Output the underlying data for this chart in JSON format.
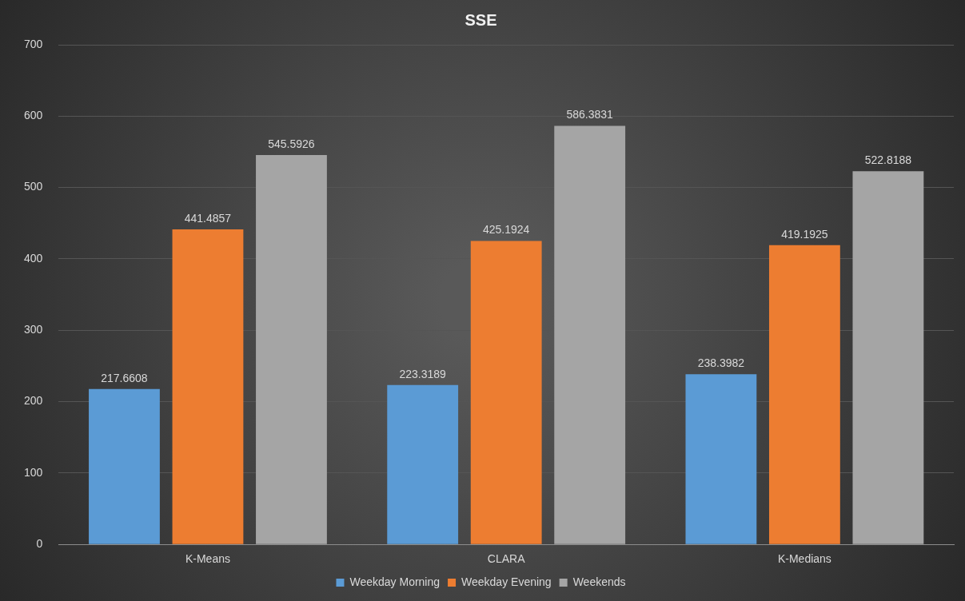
{
  "chart_data": {
    "type": "bar",
    "title": "SSE",
    "categories": [
      "K-Means",
      "CLARA",
      "K-Medians"
    ],
    "series": [
      {
        "name": "Weekday Morning",
        "color": "#5b9bd5",
        "values": [
          217.6608,
          223.3189,
          238.3982
        ]
      },
      {
        "name": "Weekday Evening",
        "color": "#ed7d31",
        "values": [
          441.4857,
          425.1924,
          419.1925
        ]
      },
      {
        "name": "Weekends",
        "color": "#a5a5a5",
        "values": [
          545.5926,
          586.3831,
          522.8188
        ]
      }
    ],
    "ylim": [
      0,
      700
    ],
    "yticks": [
      0,
      100,
      200,
      300,
      400,
      500,
      600,
      700
    ],
    "grid": "y",
    "legend": "bottom",
    "data_labels": true
  }
}
